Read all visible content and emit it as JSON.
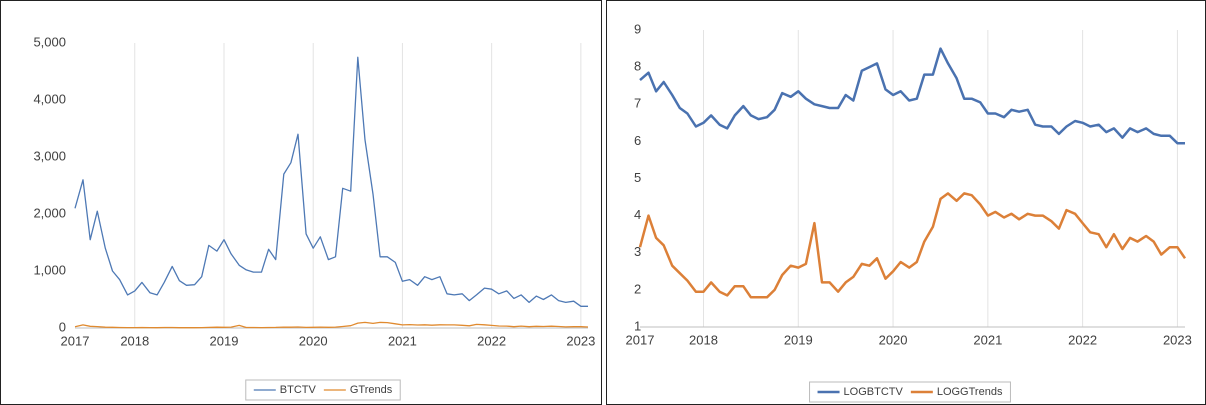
{
  "chart_data": [
    {
      "type": "line",
      "x": [
        2017.33,
        2017.42,
        2017.5,
        2017.58,
        2017.67,
        2017.75,
        2017.83,
        2017.92,
        2018,
        2018.08,
        2018.17,
        2018.25,
        2018.33,
        2018.42,
        2018.5,
        2018.58,
        2018.67,
        2018.75,
        2018.83,
        2018.92,
        2019,
        2019.08,
        2019.17,
        2019.25,
        2019.33,
        2019.42,
        2019.5,
        2019.58,
        2019.67,
        2019.75,
        2019.83,
        2019.92,
        2020,
        2020.08,
        2020.17,
        2020.25,
        2020.33,
        2020.42,
        2020.5,
        2020.58,
        2020.67,
        2020.75,
        2020.83,
        2020.92,
        2021,
        2021.08,
        2021.17,
        2021.25,
        2021.33,
        2021.42,
        2021.5,
        2021.58,
        2021.67,
        2021.75,
        2021.83,
        2021.92,
        2022,
        2022.08,
        2022.17,
        2022.25,
        2022.33,
        2022.42,
        2022.5,
        2022.58,
        2022.67,
        2022.75,
        2022.83,
        2022.92,
        2023,
        2023.08
      ],
      "series": [
        {
          "name": "BTCTV",
          "color": "#4e79b5",
          "values": [
            2100,
            2600,
            1550,
            2050,
            1400,
            1000,
            850,
            580,
            650,
            800,
            620,
            580,
            800,
            1080,
            830,
            750,
            760,
            900,
            1450,
            1350,
            1550,
            1300,
            1100,
            1020,
            980,
            980,
            1380,
            1200,
            2700,
            2900,
            3400,
            1650,
            1400,
            1600,
            1200,
            1250,
            2450,
            2400,
            4750,
            3300,
            2350,
            1250,
            1250,
            1150,
            820,
            850,
            750,
            900,
            850,
            900,
            600,
            580,
            600,
            480,
            580,
            700,
            680,
            600,
            650,
            520,
            580,
            450,
            560,
            500,
            580,
            480,
            450,
            470,
            380,
            380
          ]
        },
        {
          "name": "GTrends",
          "color": "#e08a2f",
          "values": [
            23,
            55,
            30,
            25,
            14,
            12,
            9,
            7,
            7,
            9,
            7,
            6,
            8,
            8,
            6,
            6,
            6,
            7,
            11,
            14,
            13,
            15,
            45,
            9,
            9,
            7,
            9,
            10,
            15,
            14,
            17,
            10,
            12,
            16,
            13,
            16,
            27,
            40,
            86,
            99,
            81,
            99,
            95,
            74,
            55,
            60,
            52,
            57,
            49,
            57,
            55,
            55,
            47,
            38,
            63,
            57,
            45,
            35,
            33,
            23,
            33,
            22,
            30,
            27,
            31,
            27,
            19,
            23,
            23,
            17
          ]
        }
      ],
      "xlim": [
        2017.33,
        2023.08
      ],
      "xticks": [
        {
          "value": 2017.33,
          "label": "2017"
        },
        2018,
        2019,
        2020,
        2021,
        2022,
        2023
      ],
      "ylim": [
        0,
        5000
      ],
      "yticks": [
        0,
        {
          "value": 1000,
          "label": "1,000"
        },
        {
          "value": 2000,
          "label": "2,000"
        },
        {
          "value": 3000,
          "label": "3,000"
        },
        {
          "value": 4000,
          "label": "4,000"
        },
        {
          "value": 5000,
          "label": "5,000"
        }
      ],
      "grid": "x",
      "legend": "bottom"
    },
    {
      "type": "line",
      "x": [
        2017.33,
        2017.42,
        2017.5,
        2017.58,
        2017.67,
        2017.75,
        2017.83,
        2017.92,
        2018,
        2018.08,
        2018.17,
        2018.25,
        2018.33,
        2018.42,
        2018.5,
        2018.58,
        2018.67,
        2018.75,
        2018.83,
        2018.92,
        2019,
        2019.08,
        2019.17,
        2019.25,
        2019.33,
        2019.42,
        2019.5,
        2019.58,
        2019.67,
        2019.75,
        2019.83,
        2019.92,
        2020,
        2020.08,
        2020.17,
        2020.25,
        2020.33,
        2020.42,
        2020.5,
        2020.58,
        2020.67,
        2020.75,
        2020.83,
        2020.92,
        2021,
        2021.08,
        2021.17,
        2021.25,
        2021.33,
        2021.42,
        2021.5,
        2021.58,
        2021.67,
        2021.75,
        2021.83,
        2021.92,
        2022,
        2022.08,
        2022.17,
        2022.25,
        2022.33,
        2022.42,
        2022.5,
        2022.58,
        2022.67,
        2022.75,
        2022.83,
        2022.92,
        2023,
        2023.08
      ],
      "series": [
        {
          "name": "LOGBTCTV",
          "color": "#4a72b0",
          "values": [
            7.65,
            7.85,
            7.35,
            7.6,
            7.25,
            6.9,
            6.75,
            6.4,
            6.5,
            6.7,
            6.45,
            6.35,
            6.7,
            6.95,
            6.7,
            6.6,
            6.65,
            6.85,
            7.3,
            7.2,
            7.35,
            7.15,
            7.0,
            6.95,
            6.9,
            6.9,
            7.25,
            7.1,
            7.9,
            8.0,
            8.1,
            7.4,
            7.25,
            7.35,
            7.1,
            7.15,
            7.8,
            7.8,
            8.5,
            8.1,
            7.7,
            7.15,
            7.15,
            7.05,
            6.75,
            6.75,
            6.65,
            6.85,
            6.8,
            6.85,
            6.45,
            6.4,
            6.4,
            6.2,
            6.4,
            6.55,
            6.5,
            6.4,
            6.45,
            6.25,
            6.35,
            6.1,
            6.35,
            6.25,
            6.35,
            6.2,
            6.15,
            6.15,
            5.95,
            5.95
          ]
        },
        {
          "name": "LOGGTrends",
          "color": "#dc8038",
          "values": [
            3.15,
            4.0,
            3.4,
            3.2,
            2.65,
            2.45,
            2.25,
            1.95,
            1.95,
            2.2,
            1.95,
            1.85,
            2.1,
            2.1,
            1.8,
            1.8,
            1.8,
            2.0,
            2.4,
            2.65,
            2.6,
            2.7,
            3.8,
            2.2,
            2.2,
            1.95,
            2.2,
            2.35,
            2.7,
            2.65,
            2.85,
            2.3,
            2.5,
            2.75,
            2.6,
            2.75,
            3.3,
            3.7,
            4.45,
            4.6,
            4.4,
            4.6,
            4.55,
            4.3,
            4.0,
            4.1,
            3.95,
            4.05,
            3.9,
            4.05,
            4.0,
            4.0,
            3.85,
            3.65,
            4.15,
            4.05,
            3.8,
            3.55,
            3.5,
            3.15,
            3.5,
            3.1,
            3.4,
            3.3,
            3.45,
            3.3,
            2.95,
            3.15,
            3.15,
            2.85
          ]
        }
      ],
      "xlim": [
        2017.33,
        2023.08
      ],
      "xticks": [
        {
          "value": 2017.33,
          "label": "2017"
        },
        2018,
        2019,
        2020,
        2021,
        2022,
        2023
      ],
      "ylim": [
        1,
        9
      ],
      "yticks": [
        1,
        2,
        3,
        4,
        5,
        6,
        7,
        8,
        9
      ],
      "grid": "x",
      "legend": "bottom"
    }
  ]
}
